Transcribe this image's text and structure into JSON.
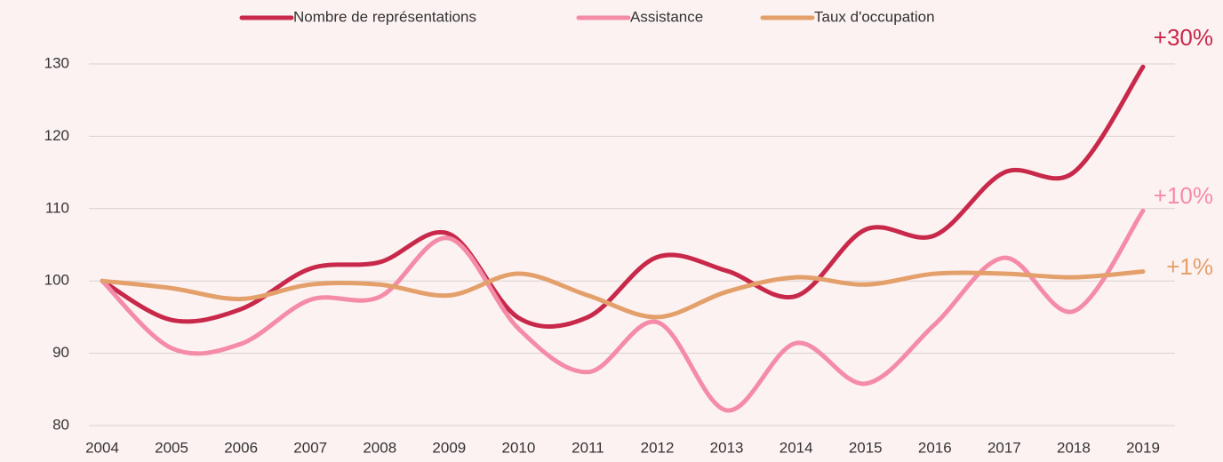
{
  "chart_data": {
    "type": "line",
    "x": [
      "2004",
      "2005",
      "2006",
      "2007",
      "2008",
      "2009",
      "2010",
      "2011",
      "2012",
      "2013",
      "2014",
      "2015",
      "2016",
      "2017",
      "2018",
      "2019"
    ],
    "series": [
      {
        "name": "Nombre de représentations",
        "color": "#c8294a",
        "values": [
          100,
          94.6,
          96.1,
          101.7,
          102.6,
          106.5,
          94.9,
          95,
          103.3,
          101.4,
          97.9,
          107.1,
          106.3,
          115,
          115,
          129.6
        ]
      },
      {
        "name": "Assistance",
        "color": "#f48ca8",
        "values": [
          100,
          90.7,
          91.3,
          97.4,
          97.8,
          105.9,
          93.4,
          87.4,
          94.3,
          82.1,
          91.4,
          85.8,
          94,
          103.2,
          95.8,
          109.7
        ]
      },
      {
        "name": "Taux d'occupation",
        "color": "#e3a06b",
        "values": [
          100,
          99,
          97.5,
          99.5,
          99.5,
          98,
          101,
          98,
          95,
          98.5,
          100.5,
          99.5,
          101,
          101,
          100.5,
          101.3
        ]
      }
    ],
    "annotations": [
      "+30%",
      "+10%",
      "+1%"
    ],
    "ylim": [
      80,
      130
    ],
    "yticks": [
      80,
      90,
      100,
      110,
      120,
      130
    ],
    "grid": true,
    "smooth": true,
    "legend": "top"
  }
}
